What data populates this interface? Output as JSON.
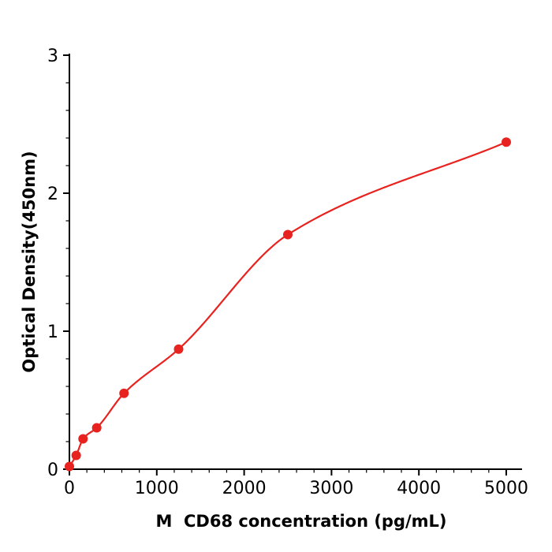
{
  "chart": {
    "xlabel": "M  CD68 concentration (pg/mL)",
    "ylabel": "Optical Density(450nm)",
    "accent_color": "#e8231f",
    "axis_color": "#000000",
    "background_color": "#ffffff"
  },
  "chart_data": {
    "type": "scatter",
    "title": "",
    "xlabel": "M  CD68 concentration (pg/mL)",
    "ylabel": "Optical Density(450nm)",
    "x": [
      0,
      78,
      156,
      313,
      625,
      1250,
      2500,
      5000
    ],
    "y": [
      0.02,
      0.1,
      0.22,
      0.3,
      0.55,
      0.87,
      1.7,
      2.37
    ],
    "fit_curve": "smooth saturating fit through data points",
    "xlim": [
      0,
      5180
    ],
    "ylim": [
      0,
      3
    ],
    "x_ticks": [
      0,
      1000,
      2000,
      3000,
      4000,
      5000
    ],
    "y_ticks": [
      0,
      1,
      2,
      3
    ],
    "x_minor_step": 200,
    "y_minor_step": 0.2,
    "grid": false,
    "legend": "none",
    "marker": "circle",
    "marker_radius_px": 6,
    "line_color": "#e8231f",
    "point_color": "#e8231f"
  }
}
